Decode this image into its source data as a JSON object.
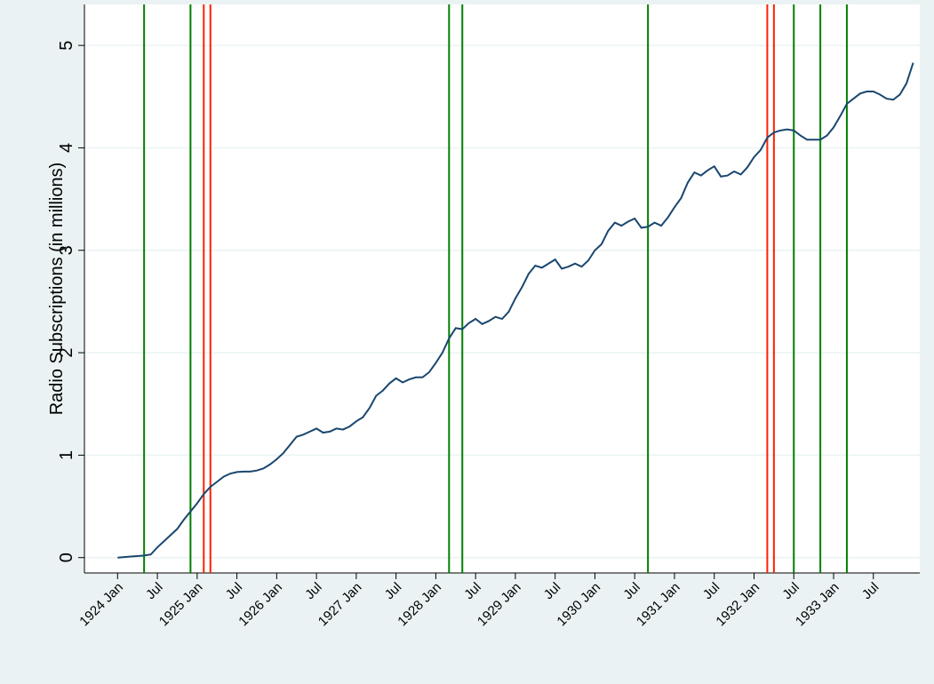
{
  "chart_data": {
    "type": "line",
    "y_label": "Radio Subscriptions (in millions)",
    "color": "#1a476f",
    "ylim": [
      -0.15,
      5.4
    ],
    "yticks": [
      0,
      1,
      2,
      3,
      4,
      5
    ],
    "grid": true,
    "xlim": [
      "1923-08",
      "1934-02"
    ],
    "xticks": [
      {
        "value": "1924-01",
        "label": "1924 Jan"
      },
      {
        "value": "1924-07",
        "label": "Jul"
      },
      {
        "value": "1925-01",
        "label": "1925 Jan"
      },
      {
        "value": "1925-07",
        "label": "Jul"
      },
      {
        "value": "1926-01",
        "label": "1926 Jan"
      },
      {
        "value": "1926-07",
        "label": "Jul"
      },
      {
        "value": "1927-01",
        "label": "1927 Jan"
      },
      {
        "value": "1927-07",
        "label": "Jul"
      },
      {
        "value": "1928-01",
        "label": "1928 Jan"
      },
      {
        "value": "1928-07",
        "label": "Jul"
      },
      {
        "value": "1929-01",
        "label": "1929 Jan"
      },
      {
        "value": "1929-07",
        "label": "Jul"
      },
      {
        "value": "1930-01",
        "label": "1930 Jan"
      },
      {
        "value": "1930-07",
        "label": "Jul"
      },
      {
        "value": "1931-01",
        "label": "1931 Jan"
      },
      {
        "value": "1931-07",
        "label": "Jul"
      },
      {
        "value": "1932-01",
        "label": "1932 Jan"
      },
      {
        "value": "1932-07",
        "label": "Jul"
      },
      {
        "value": "1933-01",
        "label": "1933 Jan"
      },
      {
        "value": "1933-07",
        "label": "Jul"
      }
    ],
    "x": [
      "1924-01",
      "1924-02",
      "1924-03",
      "1924-04",
      "1924-05",
      "1924-06",
      "1924-07",
      "1924-08",
      "1924-09",
      "1924-10",
      "1924-11",
      "1924-12",
      "1925-01",
      "1925-02",
      "1925-03",
      "1925-04",
      "1925-05",
      "1925-06",
      "1925-07",
      "1925-08",
      "1925-09",
      "1925-10",
      "1925-11",
      "1925-12",
      "1926-01",
      "1926-02",
      "1926-03",
      "1926-04",
      "1926-05",
      "1926-06",
      "1926-07",
      "1926-08",
      "1926-09",
      "1926-10",
      "1926-11",
      "1926-12",
      "1927-01",
      "1927-02",
      "1927-03",
      "1927-04",
      "1927-05",
      "1927-06",
      "1927-07",
      "1927-08",
      "1927-09",
      "1927-10",
      "1927-11",
      "1927-12",
      "1928-01",
      "1928-02",
      "1928-03",
      "1928-04",
      "1928-05",
      "1928-06",
      "1928-07",
      "1928-08",
      "1928-09",
      "1928-10",
      "1928-11",
      "1928-12",
      "1929-01",
      "1929-02",
      "1929-03",
      "1929-04",
      "1929-05",
      "1929-06",
      "1929-07",
      "1929-08",
      "1929-09",
      "1929-10",
      "1929-11",
      "1929-12",
      "1930-01",
      "1930-02",
      "1930-03",
      "1930-04",
      "1930-05",
      "1930-06",
      "1930-07",
      "1930-08",
      "1930-09",
      "1930-10",
      "1930-11",
      "1930-12",
      "1931-01",
      "1931-02",
      "1931-03",
      "1931-04",
      "1931-05",
      "1931-06",
      "1931-07",
      "1931-08",
      "1931-09",
      "1931-10",
      "1931-11",
      "1931-12",
      "1932-01",
      "1932-02",
      "1932-03",
      "1932-04",
      "1932-05",
      "1932-06",
      "1932-07",
      "1932-08",
      "1932-09",
      "1932-10",
      "1932-11",
      "1932-12",
      "1933-01",
      "1933-02",
      "1933-03",
      "1933-04",
      "1933-05",
      "1933-06",
      "1933-07",
      "1933-08",
      "1933-09",
      "1933-10",
      "1933-11",
      "1933-12",
      "1934-01"
    ],
    "values": [
      0,
      0.005,
      0.01,
      0.015,
      0.02,
      0.03,
      0.1,
      0.16,
      0.22,
      0.28,
      0.37,
      0.45,
      0.53,
      0.62,
      0.69,
      0.74,
      0.79,
      0.82,
      0.835,
      0.84,
      0.84,
      0.85,
      0.87,
      0.91,
      0.96,
      1.02,
      1.1,
      1.18,
      1.2,
      1.23,
      1.26,
      1.22,
      1.23,
      1.26,
      1.25,
      1.28,
      1.33,
      1.37,
      1.46,
      1.58,
      1.63,
      1.7,
      1.75,
      1.71,
      1.74,
      1.76,
      1.76,
      1.81,
      1.9,
      2.0,
      2.14,
      2.24,
      2.23,
      2.29,
      2.33,
      2.28,
      2.31,
      2.35,
      2.33,
      2.4,
      2.53,
      2.64,
      2.77,
      2.85,
      2.83,
      2.87,
      2.91,
      2.82,
      2.84,
      2.87,
      2.84,
      2.9,
      3.0,
      3.06,
      3.19,
      3.27,
      3.24,
      3.28,
      3.31,
      3.22,
      3.23,
      3.27,
      3.24,
      3.32,
      3.42,
      3.51,
      3.66,
      3.76,
      3.73,
      3.78,
      3.82,
      3.72,
      3.73,
      3.77,
      3.74,
      3.81,
      3.91,
      3.98,
      4.1,
      4.15,
      4.17,
      4.18,
      4.17,
      4.12,
      4.08,
      4.08,
      4.08,
      4.12,
      4.2,
      4.31,
      4.43,
      4.48,
      4.53,
      4.55,
      4.55,
      4.52,
      4.48,
      4.47,
      4.52,
      4.63,
      4.83
    ],
    "vlines": [
      {
        "x": "1924-05",
        "color": "#008000"
      },
      {
        "x": "1924-12",
        "color": "#008000"
      },
      {
        "x": "1925-02",
        "color": "#ff2000"
      },
      {
        "x": "1925-03",
        "color": "#ff2000"
      },
      {
        "x": "1928-03",
        "color": "#008000"
      },
      {
        "x": "1928-05",
        "color": "#008000"
      },
      {
        "x": "1930-09",
        "color": "#008000"
      },
      {
        "x": "1932-03",
        "color": "#ff2000"
      },
      {
        "x": "1932-04",
        "color": "#ff2000"
      },
      {
        "x": "1932-07",
        "color": "#008000"
      },
      {
        "x": "1932-11",
        "color": "#008000"
      },
      {
        "x": "1933-03",
        "color": "#008000"
      }
    ]
  }
}
